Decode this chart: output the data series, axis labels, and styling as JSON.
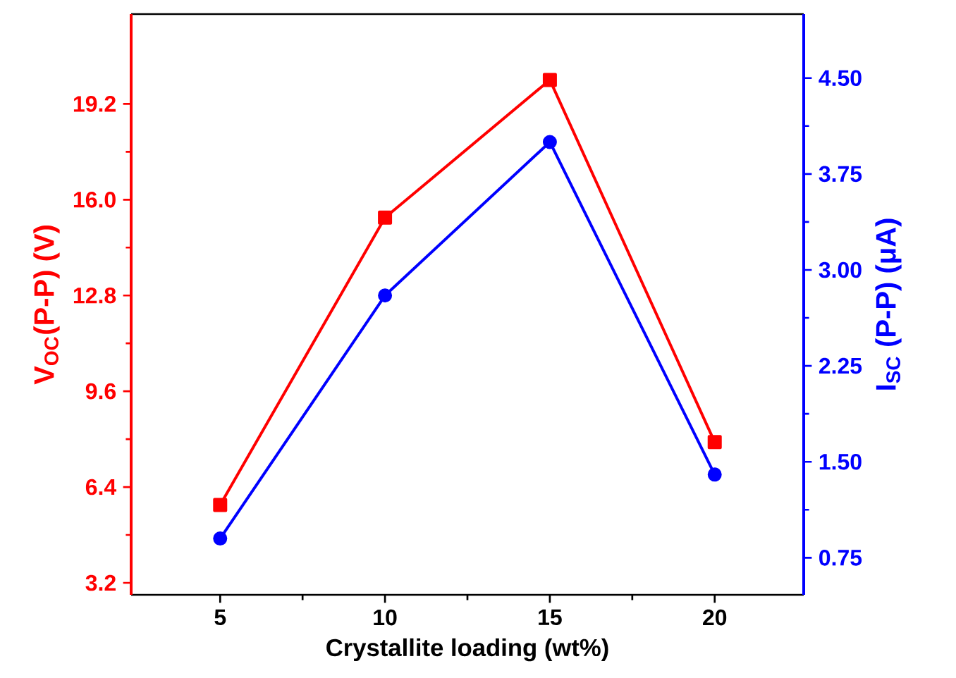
{
  "chart_data": {
    "type": "line",
    "xlabel": "Crystallite loading (wt%)",
    "ylabel": "V$_{OC}$(P-P) (V)",
    "y2label": "I$_{SC}$ (P-P) (μA)",
    "x": [
      5,
      10,
      15,
      20
    ],
    "series": [
      {
        "color": "#ff0000",
        "marker": "square",
        "values": [
          5.8,
          15.4,
          20.0,
          7.9
        ]
      },
      {
        "color": "#0000ff",
        "marker": "circle",
        "axis": "y2",
        "values": [
          0.9,
          2.8,
          4.0,
          1.4
        ]
      }
    ],
    "xlim": [
      2.3,
      22.7
    ],
    "xticks": [
      5,
      10,
      15,
      20
    ],
    "ylim": [
      2.8,
      22.2
    ],
    "yticks": [
      3.2,
      6.4,
      9.6,
      12.8,
      {
        "value": 16,
        "label": "16.0"
      },
      19.2
    ],
    "y2lim": [
      0.46,
      5.0
    ],
    "y2ticks": [
      0.75,
      {
        "value": 1.5,
        "label": "1.50"
      },
      2.25,
      {
        "value": 3,
        "label": "3.00"
      },
      3.75,
      {
        "value": 4.5,
        "label": "4.50"
      }
    ]
  }
}
